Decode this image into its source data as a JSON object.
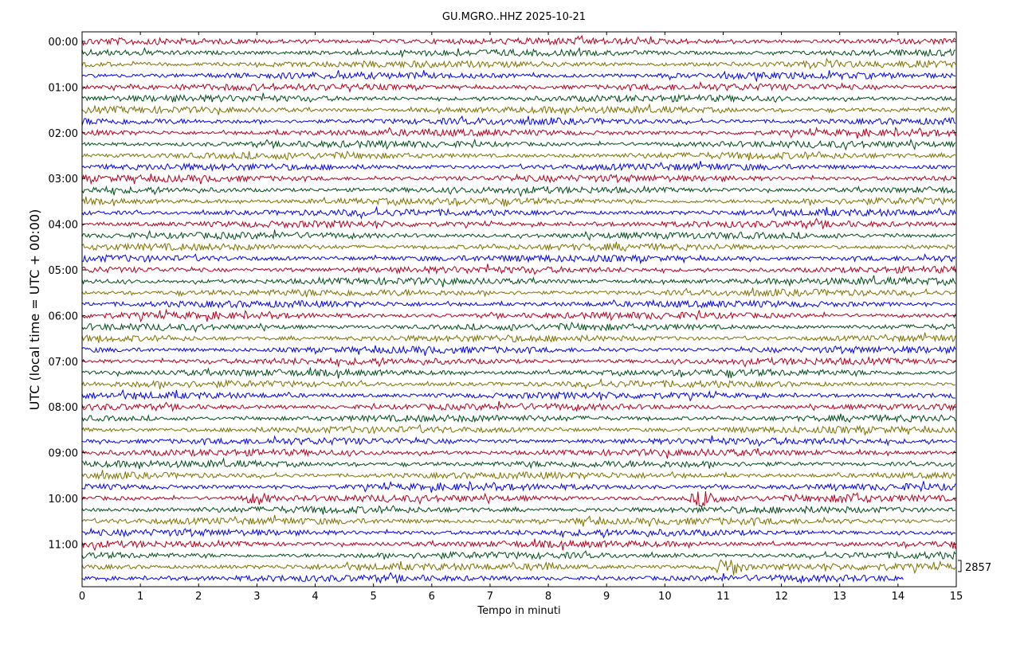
{
  "chart_data": {
    "type": "line",
    "subtype": "helicorder",
    "title": "GU.MGRO..HHZ 2025-10-21",
    "xlabel": "Tempo in minuti",
    "ylabel": "UTC (local time = UTC + 00:00)",
    "xlim": [
      0,
      15
    ],
    "x_ticks": [
      "0",
      "1",
      "2",
      "3",
      "4",
      "5",
      "6",
      "7",
      "8",
      "9",
      "10",
      "11",
      "12",
      "13",
      "14",
      "15"
    ],
    "y_tick_labels": [
      "00:00",
      "01:00",
      "02:00",
      "03:00",
      "04:00",
      "05:00",
      "06:00",
      "07:00",
      "08:00",
      "09:00",
      "10:00",
      "11:00"
    ],
    "trace_minutes": 15,
    "trace_count": 48,
    "last_trace_end_minute": 14.1,
    "colors": [
      "#b0001e",
      "#004d1a",
      "#7f7000",
      "#0000ee"
    ],
    "scale_label": "2857",
    "events": [
      {
        "trace_start": "10:00",
        "minute": 3.0,
        "amplitude": "medium"
      },
      {
        "trace_start": "10:00",
        "minute": 10.7,
        "amplitude": "large"
      },
      {
        "trace_start": "10:00",
        "minute": 13.2,
        "amplitude": "small"
      },
      {
        "trace_start": "10:30",
        "minute": 8.7,
        "amplitude": "small"
      },
      {
        "trace_start": "11:30",
        "minute": 7.9,
        "amplitude": "small"
      },
      {
        "trace_start": "11:30",
        "minute": 11.1,
        "amplitude": "large"
      }
    ],
    "grid": false
  }
}
